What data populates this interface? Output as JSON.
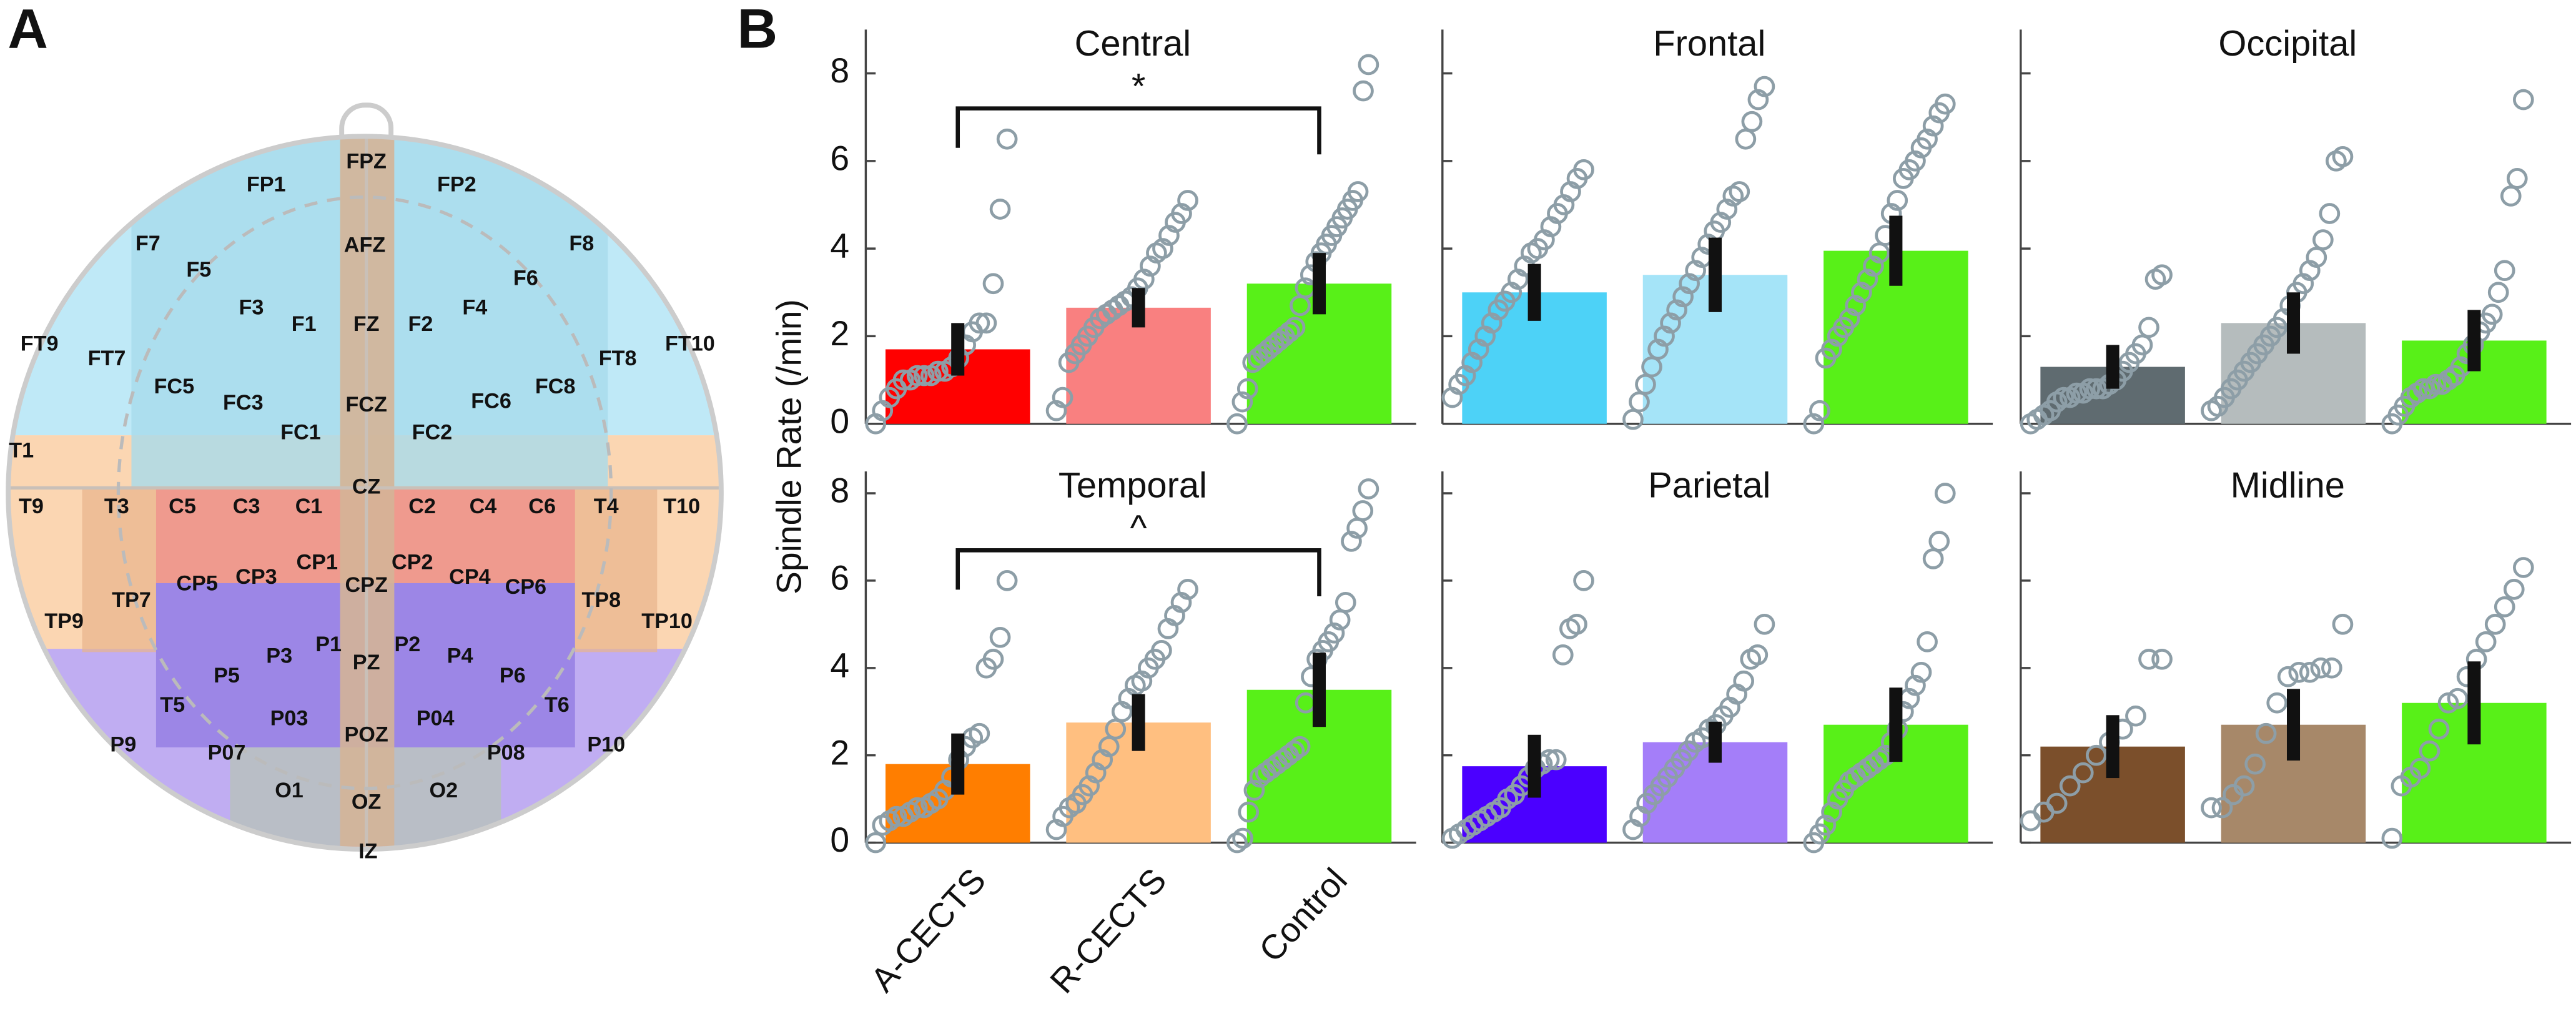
{
  "panel_labels": [
    "A",
    "B"
  ],
  "electrodes": [
    "FPZ",
    "FP1",
    "FP2",
    "F7",
    "F8",
    "AFZ",
    "F5",
    "F6",
    "F3",
    "F4",
    "F1",
    "FZ",
    "F2",
    "FT9",
    "FT10",
    "FT7",
    "FT8",
    "FC5",
    "FC6",
    "FC8",
    "FC3",
    "FCZ",
    "FC1",
    "FC2",
    "CZ",
    "T1",
    "T9",
    "T3",
    "C5",
    "C3",
    "C1",
    "C2",
    "C4",
    "C6",
    "T4",
    "T10",
    "CP1",
    "CP2",
    "CP5",
    "CP3",
    "CPZ",
    "CP4",
    "CP6",
    "TP7",
    "TP8",
    "TP9",
    "TP10",
    "P1",
    "P2",
    "P3",
    "P4",
    "PZ",
    "P5",
    "P6",
    "T5",
    "T6",
    "P03",
    "P04",
    "POZ",
    "P9",
    "P10",
    "P07",
    "P08",
    "O1",
    "OZ",
    "O2",
    "IZ"
  ],
  "chart_data": [
    {
      "type": "bar",
      "title": "Central",
      "ylabel": "Spindle Rate (/min)",
      "annotation": "*",
      "values": [
        1.7,
        2.65,
        3.2
      ],
      "errors": [
        0.6,
        0.45,
        0.7
      ],
      "colors": [
        "#ff0000",
        "#f98080",
        "#58f018"
      ],
      "points": [
        [
          0,
          0.3,
          0.6,
          0.8,
          1.0,
          1.0,
          1.1,
          1.1,
          1.1,
          1.2,
          1.2,
          1.3,
          1.5,
          1.8,
          2.1,
          2.3,
          2.3,
          3.2,
          4.9,
          6.5
        ],
        [
          0.3,
          0.6,
          1.4,
          1.6,
          1.8,
          2.0,
          2.2,
          2.4,
          2.5,
          2.6,
          2.7,
          2.8,
          2.9,
          3.1,
          3.3,
          3.6,
          3.9,
          4.0,
          4.3,
          4.6,
          4.8,
          5.1
        ],
        [
          0,
          0.5,
          0.8,
          1.4,
          1.5,
          1.6,
          1.7,
          1.8,
          1.9,
          2.0,
          2.1,
          2.2,
          2.7,
          3.1,
          3.4,
          3.7,
          3.9,
          4.1,
          4.3,
          4.5,
          4.7,
          4.9,
          5.1,
          5.3,
          7.6,
          8.2
        ]
      ],
      "ylim": [
        0,
        9
      ],
      "yticks": [
        0,
        2,
        4,
        6,
        8
      ],
      "tick_labels": true
    },
    {
      "type": "bar",
      "title": "Frontal",
      "values": [
        3.0,
        3.4,
        3.95
      ],
      "errors": [
        0.65,
        0.85,
        0.8
      ],
      "colors": [
        "#4dd2f7",
        "#a5e4f8",
        "#58f018"
      ],
      "points": [
        [
          0.6,
          0.9,
          1.1,
          1.4,
          1.7,
          2.0,
          2.3,
          2.6,
          2.8,
          3.0,
          3.3,
          3.6,
          3.9,
          4.0,
          4.2,
          4.5,
          4.8,
          5.0,
          5.3,
          5.6,
          5.8
        ],
        [
          0.1,
          0.5,
          0.9,
          1.3,
          1.7,
          2.0,
          2.3,
          2.6,
          2.9,
          3.2,
          3.5,
          3.8,
          4.1,
          4.4,
          4.6,
          4.9,
          5.2,
          5.3,
          6.5,
          6.9,
          7.4,
          7.7
        ],
        [
          0,
          0.3,
          1.5,
          1.7,
          2.0,
          2.2,
          2.4,
          2.7,
          3.0,
          3.3,
          3.6,
          3.9,
          4.3,
          4.8,
          5.1,
          5.6,
          5.8,
          6.0,
          6.3,
          6.5,
          6.8,
          7.1,
          7.3
        ]
      ],
      "ylim": [
        0,
        9
      ],
      "yticks": [
        0,
        2,
        4,
        6,
        8
      ],
      "tick_labels": false
    },
    {
      "type": "bar",
      "title": "Occipital",
      "values": [
        1.3,
        2.3,
        1.9
      ],
      "errors": [
        0.5,
        0.7,
        0.7
      ],
      "colors": [
        "#5f6b70",
        "#b5bcbd",
        "#58f018"
      ],
      "points": [
        [
          0,
          0.1,
          0.2,
          0.3,
          0.5,
          0.6,
          0.6,
          0.7,
          0.7,
          0.8,
          0.8,
          0.8,
          0.9,
          1.0,
          1.2,
          1.4,
          1.6,
          1.8,
          2.2,
          3.3,
          3.4
        ],
        [
          0.3,
          0.4,
          0.6,
          0.8,
          1.0,
          1.2,
          1.4,
          1.6,
          1.8,
          2.0,
          2.2,
          2.4,
          2.7,
          3.0,
          3.2,
          3.5,
          3.8,
          4.2,
          4.8,
          6.0,
          6.1
        ],
        [
          0,
          0.2,
          0.4,
          0.6,
          0.7,
          0.8,
          0.8,
          0.9,
          0.9,
          1.0,
          1.1,
          1.3,
          1.6,
          1.8,
          2.1,
          2.3,
          2.5,
          3.0,
          3.5,
          5.2,
          5.6,
          7.4
        ]
      ],
      "ylim": [
        0,
        9
      ],
      "yticks": [
        0,
        2,
        4,
        6,
        8
      ],
      "tick_labels": false
    },
    {
      "type": "bar",
      "title": "Temporal",
      "annotation": "^",
      "categories": [
        "A-CECTS",
        "R-CECTS",
        "Control"
      ],
      "values": [
        1.8,
        2.75,
        3.5
      ],
      "errors": [
        0.7,
        0.65,
        0.85
      ],
      "colors": [
        "#ff7e00",
        "#ffbf80",
        "#58f018"
      ],
      "points": [
        [
          0,
          0.4,
          0.5,
          0.6,
          0.6,
          0.7,
          0.8,
          0.8,
          0.9,
          1.0,
          1.2,
          1.5,
          1.9,
          2.2,
          2.4,
          2.5,
          4.0,
          4.2,
          4.7,
          6.0
        ],
        [
          0.3,
          0.6,
          0.8,
          0.9,
          1.1,
          1.3,
          1.6,
          1.9,
          2.2,
          2.6,
          3.0,
          3.3,
          3.6,
          3.7,
          4.0,
          4.2,
          4.4,
          4.9,
          5.2,
          5.5,
          5.8
        ],
        [
          0,
          0.1,
          0.7,
          1.2,
          1.5,
          1.6,
          1.7,
          1.8,
          1.9,
          2.0,
          2.1,
          2.2,
          3.2,
          3.8,
          4.2,
          4.4,
          4.6,
          4.8,
          5.1,
          5.5,
          6.9,
          7.2,
          7.6,
          8.1
        ]
      ],
      "ylim": [
        0,
        8.5
      ],
      "yticks": [
        0,
        2,
        4,
        6,
        8
      ],
      "tick_labels": true
    },
    {
      "type": "bar",
      "title": "Parietal",
      "values": [
        1.75,
        2.3,
        2.7
      ],
      "errors": [
        0.72,
        0.47,
        0.85
      ],
      "colors": [
        "#4b00ff",
        "#a47ef9",
        "#58f018"
      ],
      "points": [
        [
          0.1,
          0.2,
          0.3,
          0.4,
          0.5,
          0.6,
          0.7,
          0.8,
          1.0,
          1.1,
          1.3,
          1.5,
          1.7,
          1.8,
          1.9,
          1.9,
          4.3,
          4.9,
          5.0,
          6.0
        ],
        [
          0.3,
          0.6,
          0.9,
          1.1,
          1.3,
          1.5,
          1.7,
          1.9,
          2.1,
          2.3,
          2.4,
          2.6,
          2.7,
          2.9,
          3.1,
          3.4,
          3.7,
          4.2,
          4.3,
          5.0
        ],
        [
          0,
          0.2,
          0.4,
          0.7,
          1.0,
          1.2,
          1.4,
          1.5,
          1.6,
          1.7,
          1.8,
          1.9,
          2.0,
          2.3,
          2.6,
          3.0,
          3.3,
          3.6,
          3.9,
          4.6,
          6.5,
          6.9,
          8.0
        ]
      ],
      "ylim": [
        0,
        8.5
      ],
      "yticks": [
        0,
        2,
        4,
        6,
        8
      ],
      "tick_labels": false
    },
    {
      "type": "bar",
      "title": "Midline",
      "values": [
        2.2,
        2.7,
        3.2
      ],
      "errors": [
        0.72,
        0.82,
        0.95
      ],
      "colors": [
        "#7b4f2b",
        "#a78869",
        "#58f018"
      ],
      "points": [
        [
          0.5,
          0.7,
          0.9,
          1.3,
          1.6,
          2.0,
          2.3,
          2.6,
          2.9,
          4.2,
          4.2
        ],
        [
          0.8,
          0.8,
          1.1,
          1.3,
          1.8,
          2.5,
          3.2,
          3.8,
          3.9,
          3.9,
          4.0,
          4.0,
          5.0
        ],
        [
          0.1,
          1.3,
          1.5,
          1.7,
          2.1,
          2.6,
          3.2,
          3.3,
          3.8,
          4.2,
          4.6,
          5.0,
          5.4,
          5.8,
          6.3
        ]
      ],
      "ylim": [
        0,
        8.5
      ],
      "yticks": [
        0,
        2,
        4,
        6,
        8
      ],
      "tick_labels": false
    }
  ]
}
